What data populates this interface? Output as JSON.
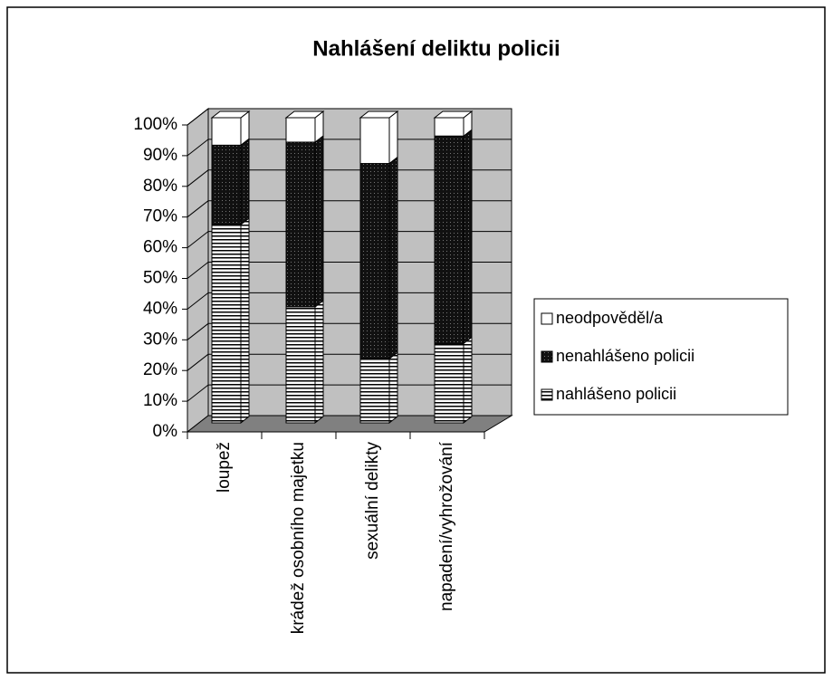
{
  "chart_data": {
    "type": "bar3d_stacked",
    "title": "Nahlášení deliktu policii",
    "categories": [
      "loupež",
      "krádež osobního majetku",
      "sexuální delikty",
      "napadení/vyhrožování"
    ],
    "series": [
      {
        "name": "nahlášeno policii",
        "pattern": "stripes",
        "values": [
          65,
          38,
          21,
          26
        ]
      },
      {
        "name": "nenahlášeno policii",
        "pattern": "dots",
        "values": [
          26,
          54,
          64,
          68
        ]
      },
      {
        "name": "neodpověděl/a",
        "pattern": "solid",
        "values": [
          9,
          8,
          15,
          6
        ]
      }
    ],
    "ylim": [
      0,
      100
    ],
    "yticks": [
      {
        "value": 0,
        "label": "0%"
      },
      {
        "value": 10,
        "label": "10%"
      },
      {
        "value": 20,
        "label": "20%"
      },
      {
        "value": 30,
        "label": "30%"
      },
      {
        "value": 40,
        "label": "40%"
      },
      {
        "value": 50,
        "label": "50%"
      },
      {
        "value": 60,
        "label": "60%"
      },
      {
        "value": 70,
        "label": "70%"
      },
      {
        "value": 80,
        "label": "80%"
      },
      {
        "value": 90,
        "label": "90%"
      },
      {
        "value": 100,
        "label": "100%"
      }
    ],
    "grid": true,
    "legend": "right"
  }
}
